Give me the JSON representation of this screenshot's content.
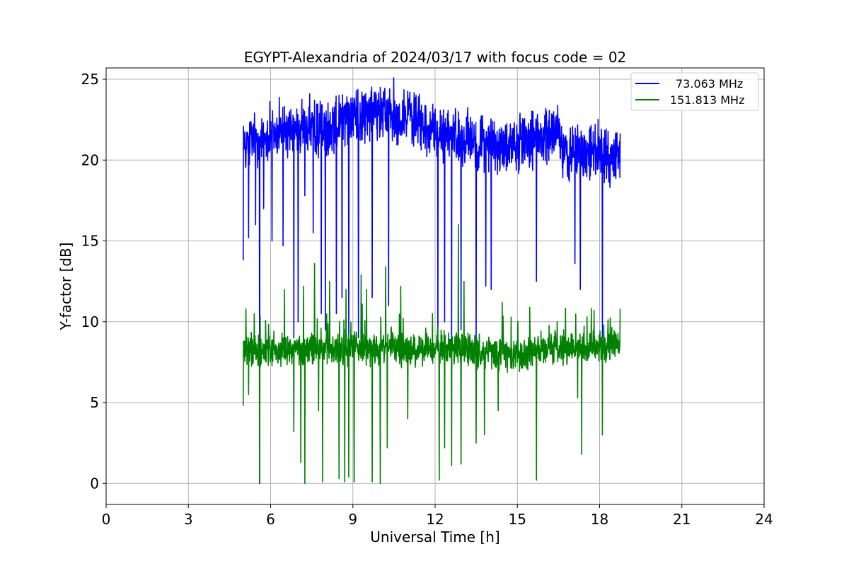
{
  "chart_data": {
    "type": "line",
    "title": "EGYPT-Alexandria of 2024/03/17 with focus code = 02",
    "xlabel": "Universal Time [h]",
    "ylabel": "Y-factor [dB]",
    "xlim": [
      0,
      24
    ],
    "ylim": [
      -1.3,
      25.7
    ],
    "xticks": [
      0,
      3,
      6,
      9,
      12,
      15,
      18,
      21,
      24
    ],
    "yticks": [
      0,
      5,
      10,
      15,
      20,
      25
    ],
    "grid": true,
    "legend_position": "top-right",
    "series": [
      {
        "name": "73.063 MHz",
        "color": "#0000ff",
        "x_range": [
          5.0,
          18.75
        ],
        "baseline": [
          [
            5.0,
            21.0
          ],
          [
            5.5,
            21.3
          ],
          [
            6.0,
            21.5
          ],
          [
            6.5,
            21.8
          ],
          [
            7.0,
            22.0
          ],
          [
            7.5,
            22.0
          ],
          [
            8.0,
            21.7
          ],
          [
            8.5,
            22.5
          ],
          [
            9.0,
            22.8
          ],
          [
            9.5,
            22.7
          ],
          [
            10.0,
            22.9
          ],
          [
            10.5,
            22.6
          ],
          [
            11.0,
            22.8
          ],
          [
            11.5,
            22.2
          ],
          [
            12.0,
            21.8
          ],
          [
            12.5,
            21.5
          ],
          [
            13.0,
            21.4
          ],
          [
            13.5,
            21.2
          ],
          [
            14.0,
            20.9
          ],
          [
            14.5,
            20.7
          ],
          [
            15.0,
            21.0
          ],
          [
            15.5,
            21.3
          ],
          [
            16.0,
            21.4
          ],
          [
            16.5,
            22.0
          ],
          [
            16.6,
            20.4
          ],
          [
            17.0,
            20.3
          ],
          [
            17.5,
            20.4
          ],
          [
            18.0,
            20.2
          ],
          [
            18.75,
            20.3
          ]
        ],
        "noise_amplitude": 1.0,
        "peak": [
          10.0,
          24.5
        ],
        "dips": [
          [
            5.0,
            13.8
          ],
          [
            5.2,
            15.2
          ],
          [
            5.45,
            16.0
          ],
          [
            5.6,
            0.0
          ],
          [
            5.75,
            17.0
          ],
          [
            6.05,
            15.0
          ],
          [
            6.45,
            14.7
          ],
          [
            6.85,
            9.0
          ],
          [
            7.0,
            10.0
          ],
          [
            7.25,
            17.8
          ],
          [
            7.55,
            15.5
          ],
          [
            7.85,
            10.5
          ],
          [
            8.0,
            9.5
          ],
          [
            8.4,
            10.5
          ],
          [
            8.6,
            11.5
          ],
          [
            8.85,
            8.5
          ],
          [
            9.2,
            9.0
          ],
          [
            9.7,
            11.5
          ],
          [
            10.0,
            8.5
          ],
          [
            10.3,
            11.0
          ],
          [
            12.1,
            8.5
          ],
          [
            12.35,
            10.0
          ],
          [
            12.6,
            8.0
          ],
          [
            12.95,
            9.5
          ],
          [
            13.5,
            8.5
          ],
          [
            13.85,
            12.2
          ],
          [
            14.05,
            12.0
          ],
          [
            15.7,
            12.5
          ],
          [
            17.1,
            13.6
          ],
          [
            17.3,
            12.0
          ],
          [
            18.1,
            9.0
          ]
        ]
      },
      {
        "name": "151.813 MHz",
        "color": "#008000",
        "x_range": [
          5.0,
          18.75
        ],
        "baseline": [
          [
            5.0,
            8.2
          ],
          [
            6.0,
            8.2
          ],
          [
            7.0,
            8.3
          ],
          [
            8.0,
            8.3
          ],
          [
            9.0,
            8.4
          ],
          [
            10.0,
            8.3
          ],
          [
            11.0,
            8.2
          ],
          [
            12.0,
            8.2
          ],
          [
            13.0,
            8.3
          ],
          [
            14.0,
            8.0
          ],
          [
            15.0,
            8.0
          ],
          [
            16.0,
            8.3
          ],
          [
            17.0,
            8.3
          ],
          [
            18.0,
            8.4
          ],
          [
            18.75,
            8.5
          ]
        ],
        "noise_amplitude": 0.6,
        "spikes_up": [
          [
            5.1,
            10.8
          ],
          [
            5.4,
            10.5
          ],
          [
            6.5,
            12.0
          ],
          [
            7.2,
            12.2
          ],
          [
            7.6,
            13.6
          ],
          [
            8.15,
            12.5
          ],
          [
            8.75,
            12.0
          ],
          [
            9.3,
            12.9
          ],
          [
            9.5,
            12.0
          ],
          [
            10.2,
            13.4
          ],
          [
            10.75,
            12.2
          ],
          [
            11.9,
            10.5
          ],
          [
            12.85,
            16.0
          ],
          [
            13.05,
            12.5
          ],
          [
            14.45,
            11.2
          ],
          [
            15.45,
            10.9
          ],
          [
            16.45,
            10.0
          ],
          [
            17.8,
            10.7
          ],
          [
            18.15,
            9.8
          ],
          [
            18.75,
            10.8
          ]
        ],
        "dips": [
          [
            5.0,
            4.8
          ],
          [
            5.2,
            5.5
          ],
          [
            5.6,
            0.2
          ],
          [
            6.85,
            3.2
          ],
          [
            7.1,
            1.3
          ],
          [
            7.25,
            0.0
          ],
          [
            7.75,
            4.5
          ],
          [
            7.9,
            0.1
          ],
          [
            8.15,
            2.6
          ],
          [
            8.5,
            0.3
          ],
          [
            8.7,
            0.1
          ],
          [
            8.85,
            0.4
          ],
          [
            9.05,
            0.1
          ],
          [
            9.5,
            1.5
          ],
          [
            9.7,
            0.1
          ],
          [
            10.0,
            0.0
          ],
          [
            10.25,
            2.2
          ],
          [
            11.0,
            4.0
          ],
          [
            12.15,
            0.2
          ],
          [
            12.35,
            2.2
          ],
          [
            12.6,
            1.1
          ],
          [
            12.95,
            1.2
          ],
          [
            13.5,
            2.5
          ],
          [
            13.8,
            3.0
          ],
          [
            14.3,
            4.5
          ],
          [
            15.7,
            0.2
          ],
          [
            17.2,
            5.3
          ],
          [
            17.35,
            1.8
          ],
          [
            18.1,
            3.0
          ]
        ]
      }
    ]
  }
}
